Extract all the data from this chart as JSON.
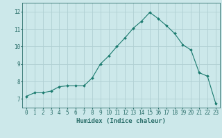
{
  "x": [
    0,
    1,
    2,
    3,
    4,
    5,
    6,
    7,
    8,
    9,
    10,
    11,
    12,
    13,
    14,
    15,
    16,
    17,
    18,
    19,
    20,
    21,
    22,
    23
  ],
  "y": [
    7.15,
    7.35,
    7.35,
    7.45,
    7.7,
    7.75,
    7.75,
    7.75,
    8.2,
    9.0,
    9.45,
    10.0,
    10.5,
    11.05,
    11.45,
    11.95,
    11.6,
    11.2,
    10.75,
    10.1,
    9.8,
    8.5,
    8.3,
    6.75
  ],
  "line_color": "#1a7a6e",
  "marker": "D",
  "marker_size": 2.0,
  "bg_color": "#cce8ea",
  "grid_color": "#b0d0d3",
  "axis_color": "#2a6e6a",
  "xlabel": "Humidex (Indice chaleur)",
  "xlabel_fontsize": 6.5,
  "ylim": [
    6.5,
    12.5
  ],
  "xlim": [
    -0.5,
    23.5
  ],
  "yticks": [
    7,
    8,
    9,
    10,
    11,
    12
  ],
  "xticks": [
    0,
    1,
    2,
    3,
    4,
    5,
    6,
    7,
    8,
    9,
    10,
    11,
    12,
    13,
    14,
    15,
    16,
    17,
    18,
    19,
    20,
    21,
    22,
    23
  ],
  "tick_fontsize": 5.5,
  "ylabel_fontsize": 6.0
}
